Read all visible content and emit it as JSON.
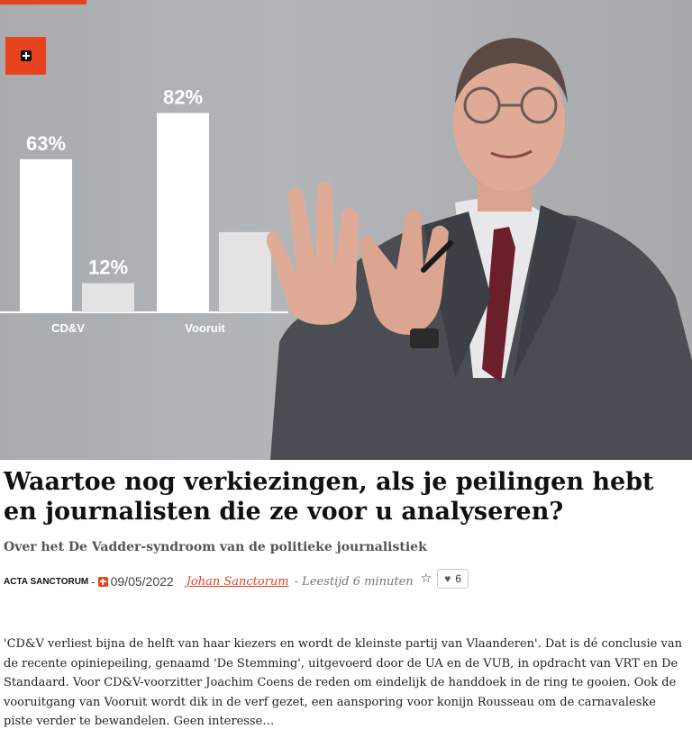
{
  "hero": {
    "accent_color": "#e8431f",
    "badge_icon": "plus-icon"
  },
  "chart_data": {
    "type": "bar",
    "categories": [
      "CD&V",
      "Vooruit"
    ],
    "series": [
      {
        "values": [
          63,
          82
        ]
      },
      {
        "values": [
          12,
          33
        ]
      }
    ],
    "data_labels": [
      "63%",
      "12%",
      "82%",
      ""
    ],
    "ylim": [
      0,
      100
    ],
    "grid": false,
    "colors": [
      "#ffffff",
      "#e3e3e3"
    ]
  },
  "article": {
    "title": "Waartoe nog verkiezingen, als je peilingen hebt en journalisten die ze voor u analyseren?",
    "subtitle": "Over het De Vadder-syndroom van de politieke journalistiek",
    "meta": {
      "site": "ACTA SANCTORUM",
      "separator": "-",
      "date": "09/05/2022",
      "author": "Johan Sanctorum",
      "reading_time": "- Leestijd 6 minuten",
      "star_icon": "star-icon",
      "like_count": "6"
    },
    "excerpt": "'CD&V verliest bijna de helft van haar kiezers en wordt de kleinste partij van Vlaanderen'. Dat is dé conclusie van de recente opiniepeiling, genaamd 'De Stemming', uitgevoerd door de UA en de VUB, in opdracht van VRT en De Standaard. Voor CD&V-voorzitter Joachim Coens de reden om eindelijk de handdoek in de ring te gooien. Ook de vooruitgang van Vooruit wordt dik in de verf gezet, een aansporing voor konijn Rousseau om de carnavaleske piste verder te bewandelen. Geen interesse…"
  }
}
